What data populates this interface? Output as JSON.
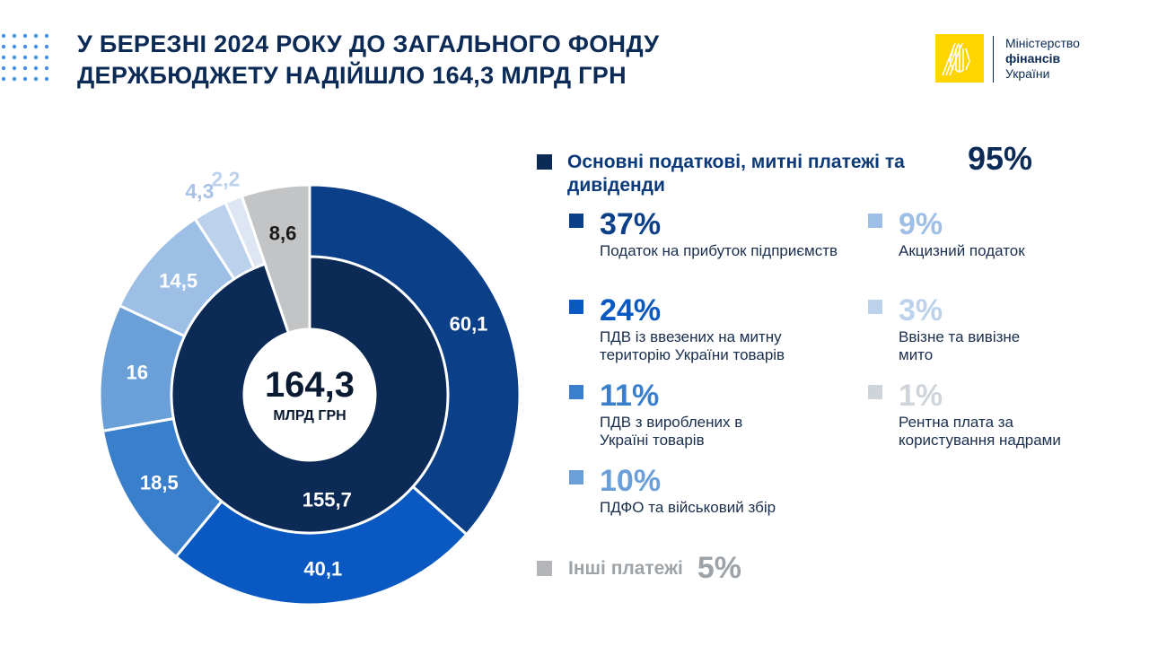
{
  "header": {
    "title_line1": "У БЕРЕЗНІ 2024 РОКУ ДО ЗАГАЛЬНОГО ФОНДУ",
    "title_line2": "ДЕРЖБЮДЖЕТУ НАДІЙШЛО 164,3 МЛРД ГРН"
  },
  "logo": {
    "line1": "Міністерство",
    "line2": "фінансів",
    "line3": "України"
  },
  "chart_data": {
    "type": "pie",
    "center_value": "164,3",
    "center_unit": "МЛРД ГРН",
    "inner_ring": [
      {
        "label": "155,7",
        "value": 155.7,
        "color": "#0b2a55"
      },
      {
        "label": "8,6",
        "value": 8.6,
        "color": "#c2c4c6"
      }
    ],
    "outer_ring": [
      {
        "label": "60,1",
        "value": 60.1,
        "color": "#0b3f88"
      },
      {
        "label": "40,1",
        "value": 40.1,
        "color": "#0a58c2"
      },
      {
        "label": "18,5",
        "value": 18.5,
        "color": "#3a7fcc"
      },
      {
        "label": "16",
        "value": 16,
        "color": "#6a9fd8"
      },
      {
        "label": "14,5",
        "value": 14.5,
        "color": "#9dbfe6"
      },
      {
        "label": "4,3",
        "value": 4.3,
        "color": "#bcd2ec"
      },
      {
        "label": "2,2",
        "value": 2.2,
        "color": "#dde6f2"
      },
      {
        "label": "8,6",
        "value": 8.6,
        "color": "#c2c4c6"
      }
    ]
  },
  "legend": {
    "main_label": "Основні податкові, митні платежі та дивіденди",
    "main_pct": "95%",
    "main_color": "#0b2a55",
    "items": [
      {
        "pct": "37%",
        "desc": "Податок на прибуток підприємств",
        "color": "#0b3f88"
      },
      {
        "pct": "24%",
        "desc": "ПДВ із ввезених на митну територію України товарів",
        "color": "#0a58c2"
      },
      {
        "pct": "11%",
        "desc": "ПДВ з вироблених в Україні товарів",
        "color": "#3a7fcc"
      },
      {
        "pct": "10%",
        "desc": "ПДФО та військовий збір",
        "color": "#6a9fd8"
      },
      {
        "pct": "9%",
        "desc": "Акцизний податок",
        "color": "#9dbfe6"
      },
      {
        "pct": "3%",
        "desc": "Ввізне та вивізне мито",
        "color": "#bcd2ec"
      },
      {
        "pct": "1%",
        "desc": "Рентна плата за користування надрами",
        "color": "#cfd4da"
      }
    ],
    "others_label": "Інші платежі",
    "others_pct": "5%",
    "others_color": "#b3b5b8"
  }
}
